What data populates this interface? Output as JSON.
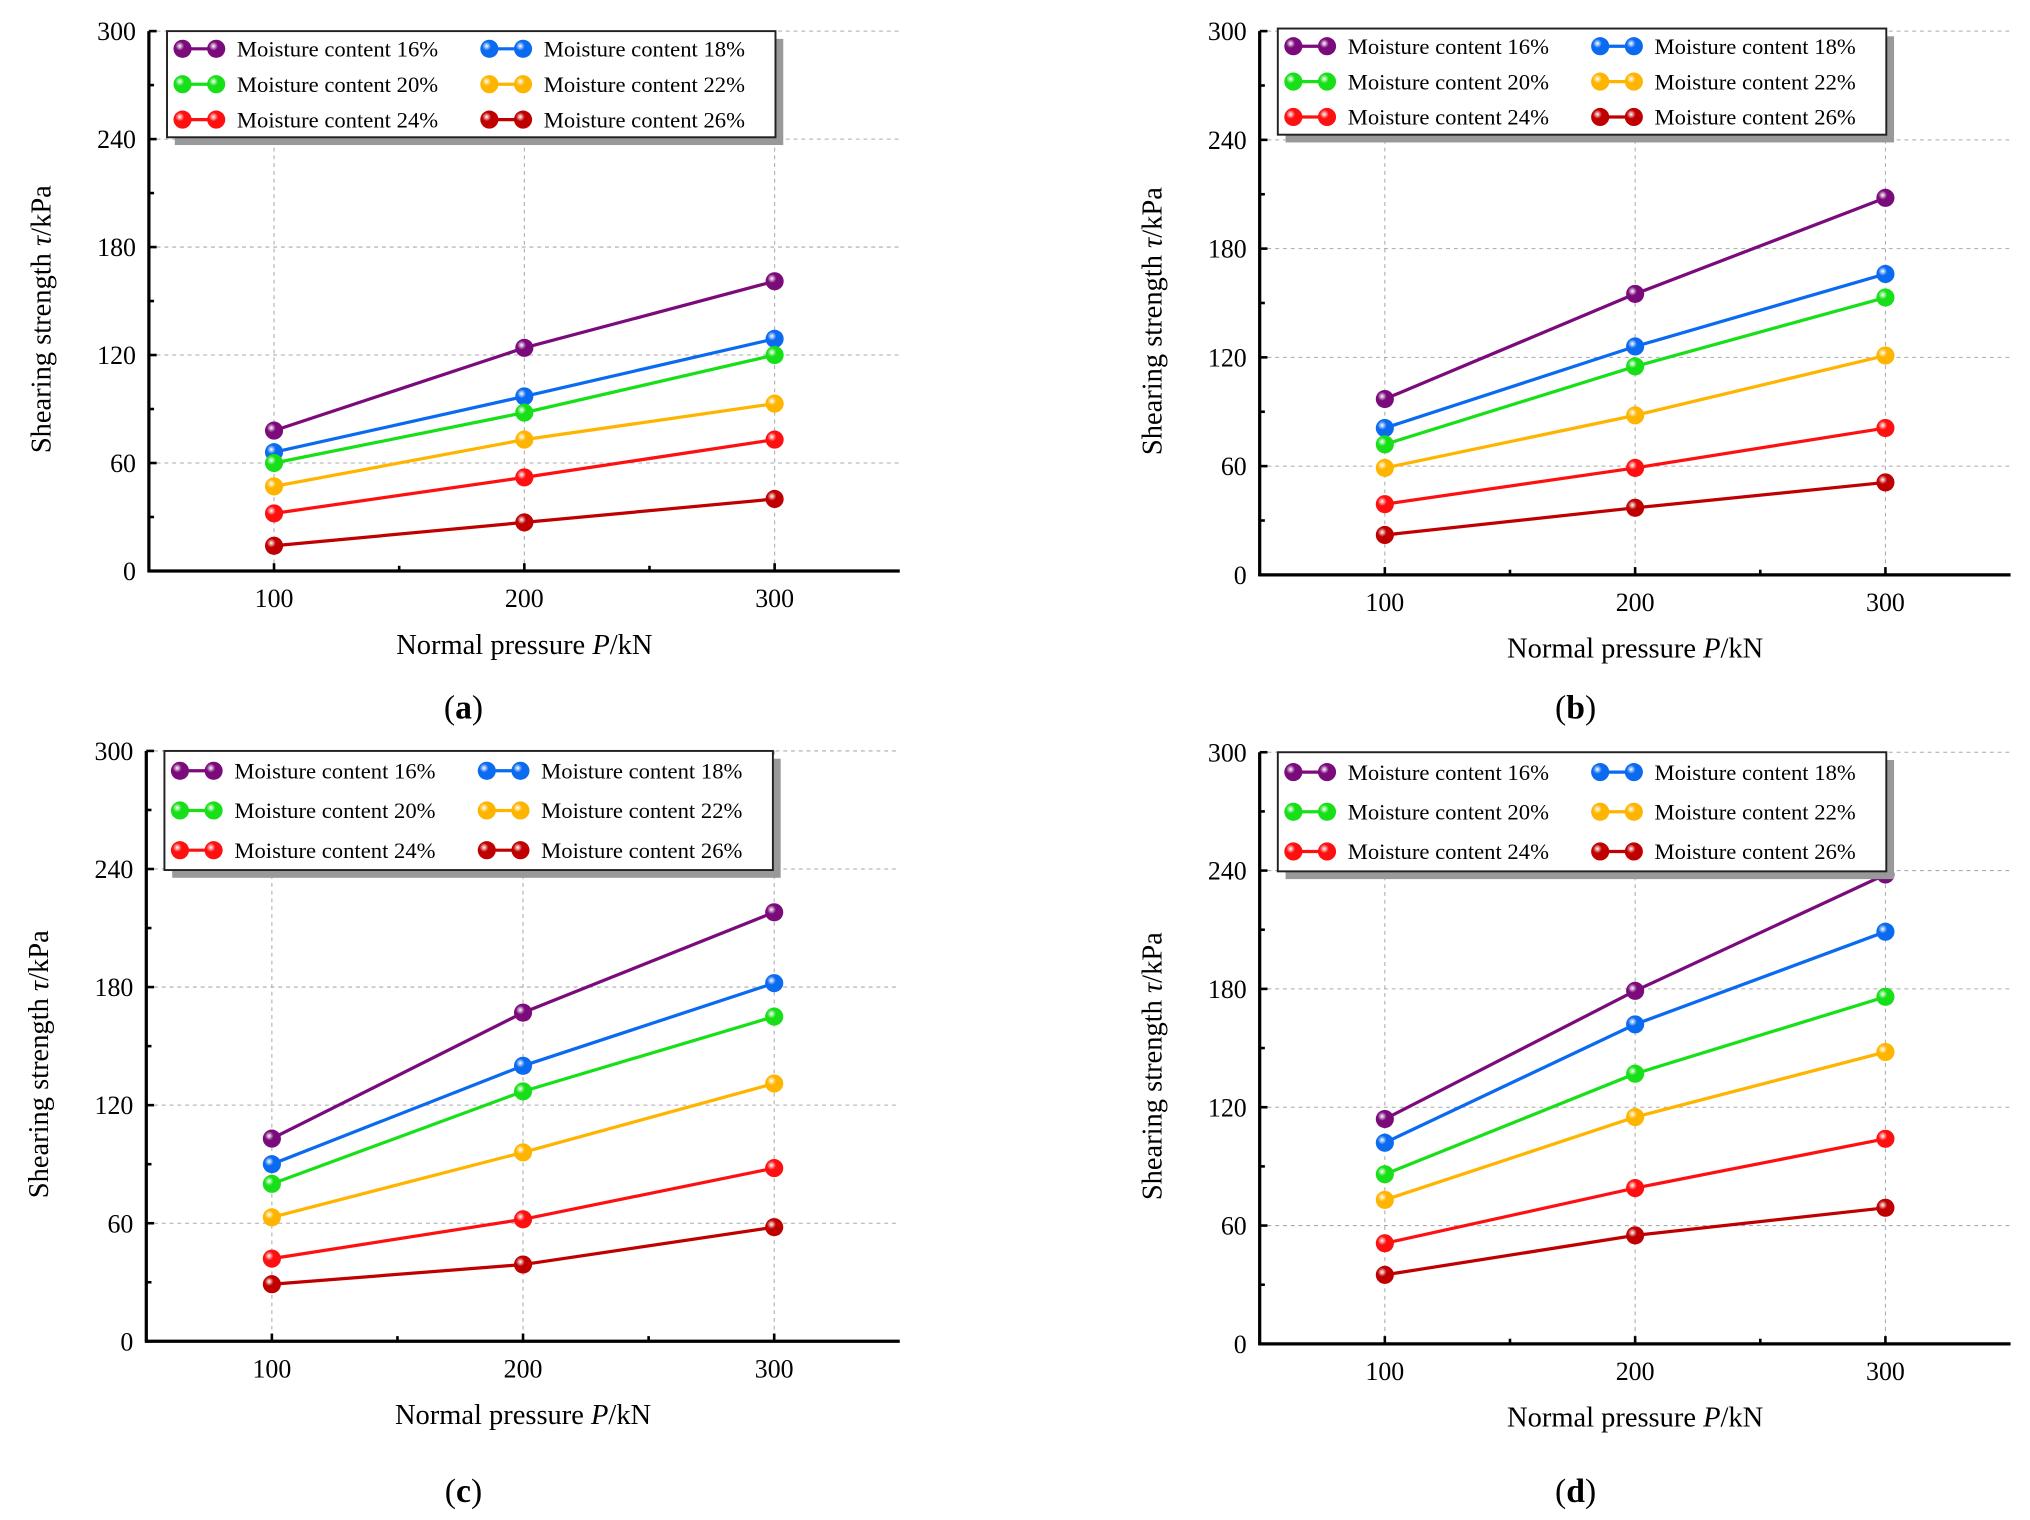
{
  "chart_data": [
    {
      "panel_label": "(a)",
      "label_letter": "a",
      "type": "line",
      "xlabel_prefix": "Normal pressure ",
      "xlabel_var": "P",
      "xlabel_unit": "/kN",
      "ylabel_prefix": "Shearing strength ",
      "ylabel_var": "τ",
      "ylabel_unit": "/kPa",
      "x": [
        100,
        200,
        300
      ],
      "xlim": [
        50,
        350
      ],
      "ylim": [
        0,
        300
      ],
      "xticks": [
        100,
        200,
        300
      ],
      "yticks": [
        0,
        60,
        120,
        180,
        240,
        300
      ],
      "grid": true,
      "legend_position": "top",
      "series": [
        {
          "name": "Moisture content 16%",
          "color": "#7b0a7b",
          "values": [
            78,
            124,
            161
          ]
        },
        {
          "name": "Moisture content 18%",
          "color": "#0a6af0",
          "values": [
            66,
            97,
            129
          ]
        },
        {
          "name": "Moisture content 20%",
          "color": "#18e018",
          "values": [
            60,
            88,
            120
          ]
        },
        {
          "name": "Moisture content 22%",
          "color": "#ffb400",
          "values": [
            47,
            73,
            93
          ]
        },
        {
          "name": "Moisture content 24%",
          "color": "#ff1010",
          "values": [
            32,
            52,
            73
          ]
        },
        {
          "name": "Moisture content 26%",
          "color": "#c00000",
          "values": [
            14,
            27,
            40
          ]
        }
      ]
    },
    {
      "panel_label": "(b)",
      "label_letter": "b",
      "type": "line",
      "xlabel_prefix": "Normal pressure ",
      "xlabel_var": "P",
      "xlabel_unit": "/kN",
      "ylabel_prefix": "Shearing strength ",
      "ylabel_var": "τ",
      "ylabel_unit": "/kPa",
      "x": [
        100,
        200,
        300
      ],
      "xlim": [
        50,
        350
      ],
      "ylim": [
        0,
        300
      ],
      "xticks": [
        100,
        200,
        300
      ],
      "yticks": [
        0,
        60,
        120,
        180,
        240,
        300
      ],
      "grid": true,
      "legend_position": "top",
      "series": [
        {
          "name": "Moisture content 16%",
          "color": "#7b0a7b",
          "values": [
            97,
            155,
            208
          ]
        },
        {
          "name": "Moisture content 18%",
          "color": "#0a6af0",
          "values": [
            81,
            126,
            166
          ]
        },
        {
          "name": "Moisture content 20%",
          "color": "#18e018",
          "values": [
            72,
            115,
            153
          ]
        },
        {
          "name": "Moisture content 22%",
          "color": "#ffb400",
          "values": [
            59,
            88,
            121
          ]
        },
        {
          "name": "Moisture content 24%",
          "color": "#ff1010",
          "values": [
            39,
            59,
            81
          ]
        },
        {
          "name": "Moisture content 26%",
          "color": "#c00000",
          "values": [
            22,
            37,
            51
          ]
        }
      ]
    },
    {
      "panel_label": "(c)",
      "label_letter": "c",
      "type": "line",
      "xlabel_prefix": "Normal pressure ",
      "xlabel_var": "P",
      "xlabel_unit": "/kN",
      "ylabel_prefix": "Shearing strength ",
      "ylabel_var": "τ",
      "ylabel_unit": "/kPa",
      "x": [
        100,
        200,
        300
      ],
      "xlim": [
        50,
        350
      ],
      "ylim": [
        0,
        300
      ],
      "xticks": [
        100,
        200,
        300
      ],
      "yticks": [
        0,
        60,
        120,
        180,
        240,
        300
      ],
      "grid": true,
      "legend_position": "top",
      "series": [
        {
          "name": "Moisture content 16%",
          "color": "#7b0a7b",
          "values": [
            103,
            167,
            218
          ]
        },
        {
          "name": "Moisture content 18%",
          "color": "#0a6af0",
          "values": [
            90,
            140,
            182
          ]
        },
        {
          "name": "Moisture content 20%",
          "color": "#18e018",
          "values": [
            80,
            127,
            165
          ]
        },
        {
          "name": "Moisture content 22%",
          "color": "#ffb400",
          "values": [
            63,
            96,
            131
          ]
        },
        {
          "name": "Moisture content 24%",
          "color": "#ff1010",
          "values": [
            42,
            62,
            88
          ]
        },
        {
          "name": "Moisture content 26%",
          "color": "#c00000",
          "values": [
            29,
            39,
            58
          ]
        }
      ]
    },
    {
      "panel_label": "(d)",
      "label_letter": "d",
      "type": "line",
      "xlabel_prefix": "Normal pressure ",
      "xlabel_var": "P",
      "xlabel_unit": "/kN",
      "ylabel_prefix": "Shearing strength ",
      "ylabel_var": "τ",
      "ylabel_unit": "/kPa",
      "x": [
        100,
        200,
        300
      ],
      "xlim": [
        50,
        350
      ],
      "ylim": [
        0,
        300
      ],
      "xticks": [
        100,
        200,
        300
      ],
      "yticks": [
        0,
        60,
        120,
        180,
        240,
        300
      ],
      "grid": true,
      "legend_position": "top",
      "series": [
        {
          "name": "Moisture content 16%",
          "color": "#7b0a7b",
          "values": [
            114,
            179,
            238
          ]
        },
        {
          "name": "Moisture content 18%",
          "color": "#0a6af0",
          "values": [
            102,
            162,
            209
          ]
        },
        {
          "name": "Moisture content 20%",
          "color": "#18e018",
          "values": [
            86,
            137,
            176
          ]
        },
        {
          "name": "Moisture content 22%",
          "color": "#ffb400",
          "values": [
            73,
            115,
            148
          ]
        },
        {
          "name": "Moisture content 24%",
          "color": "#ff1010",
          "values": [
            51,
            79,
            104
          ]
        },
        {
          "name": "Moisture content 26%",
          "color": "#c00000",
          "values": [
            35,
            55,
            69
          ]
        }
      ]
    }
  ]
}
